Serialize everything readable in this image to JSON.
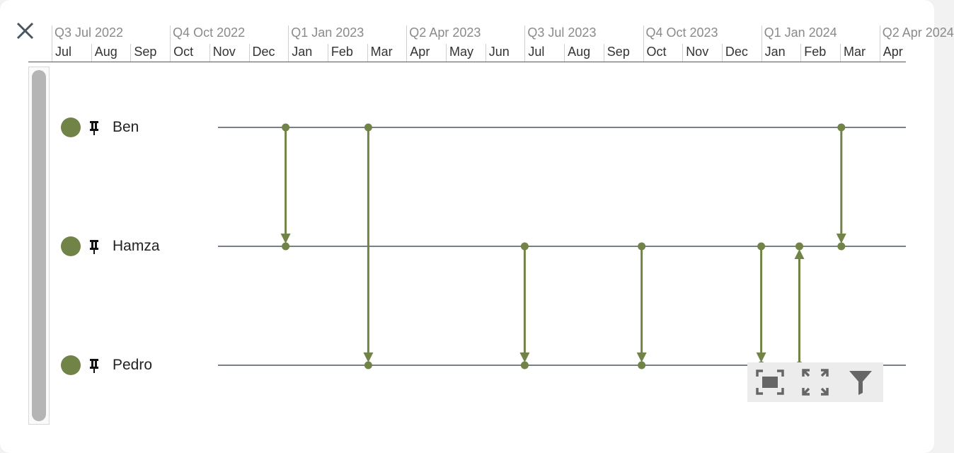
{
  "close_label": "close",
  "axis": {
    "quarters": [
      "Q3 Jul 2022",
      "Q4 Oct 2022",
      "Q1 Jan 2023",
      "Q2 Apr 2023",
      "Q3 Jul 2023",
      "Q4 Oct 2023",
      "Q1 Jan 2024",
      "Q2 Apr 2024"
    ],
    "months": [
      "Jul",
      "Aug",
      "Sep",
      "Oct",
      "Nov",
      "Dec",
      "Jan",
      "Feb",
      "Mar",
      "Apr",
      "May",
      "Jun",
      "Jul",
      "Aug",
      "Sep",
      "Oct",
      "Nov",
      "Dec",
      "Jan",
      "Feb",
      "Mar",
      "Apr"
    ]
  },
  "rows": [
    {
      "name": "Ben"
    },
    {
      "name": "Hamza"
    },
    {
      "name": "Pedro"
    }
  ],
  "colors": {
    "accent": "#718346",
    "row_line": "#4a5560",
    "icon_gray": "#666666"
  },
  "toolbar": {
    "icons": [
      "fit-to-screen-icon",
      "expand-icon",
      "filter-icon"
    ]
  },
  "chart_data": {
    "type": "timeline",
    "start_month": "2022-07",
    "rows": [
      "Ben",
      "Hamza",
      "Pedro"
    ],
    "links": [
      {
        "from": "Ben",
        "to": "Hamza",
        "date": "2022-12-30"
      },
      {
        "from": "Ben",
        "to": "Pedro",
        "date": "2023-03-02"
      },
      {
        "from": "Hamza",
        "to": "Pedro",
        "date": "2023-07-01"
      },
      {
        "from": "Hamza",
        "to": "Pedro",
        "date": "2023-09-30"
      },
      {
        "from": "Hamza",
        "to": "Pedro",
        "date": "2024-01-01"
      },
      {
        "from": "Pedro",
        "to": "Hamza",
        "date": "2024-01-31"
      },
      {
        "from": "Ben",
        "to": "Hamza",
        "date": "2024-03-02"
      }
    ]
  }
}
